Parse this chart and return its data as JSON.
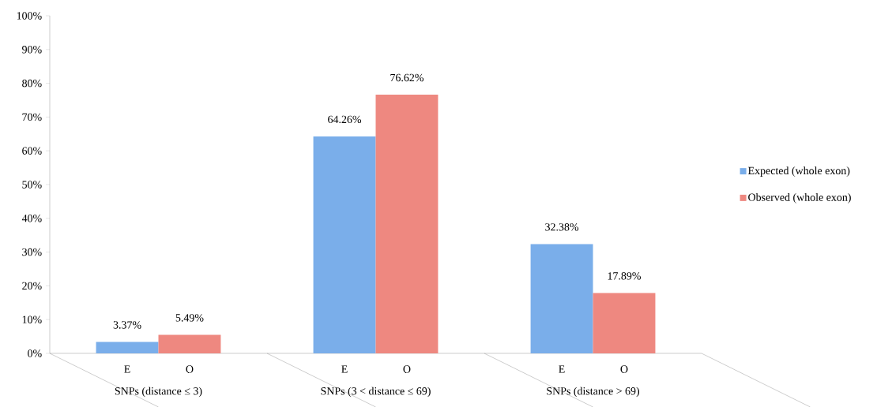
{
  "chart_data": {
    "type": "bar",
    "categories": [
      "SNPs (distance ≤ 3)",
      "SNPs (3 < distance ≤ 69)",
      "SNPs (distance > 69)"
    ],
    "series": [
      {
        "name": "Expected (whole exon)",
        "color": "#7aaeea",
        "values": [
          3.37,
          64.26,
          32.38
        ],
        "value_labels": [
          "3.37%",
          "64.26%",
          "32.38%"
        ]
      },
      {
        "name": "Observed (whole exon)",
        "color": "#ee8880",
        "values": [
          5.49,
          76.62,
          17.89
        ],
        "value_labels": [
          "5.49%",
          "76.62%",
          "17.89%"
        ]
      }
    ],
    "ylim": [
      0,
      100
    ],
    "yticks": [
      {
        "value": 0,
        "label": "0%"
      },
      {
        "value": 10,
        "label": "10%"
      },
      {
        "value": 20,
        "label": "20%"
      },
      {
        "value": 30,
        "label": "30%"
      },
      {
        "value": 40,
        "label": "40%"
      },
      {
        "value": 50,
        "label": "50%"
      },
      {
        "value": 60,
        "label": "60%"
      },
      {
        "value": 70,
        "label": "70%"
      },
      {
        "value": 80,
        "label": "80%"
      },
      {
        "value": 90,
        "label": "90%"
      },
      {
        "value": 100,
        "label": "100%"
      }
    ],
    "grid": false,
    "legend": "right",
    "annotations": [
      "E",
      "O",
      "E",
      "O",
      "E",
      "O"
    ]
  }
}
